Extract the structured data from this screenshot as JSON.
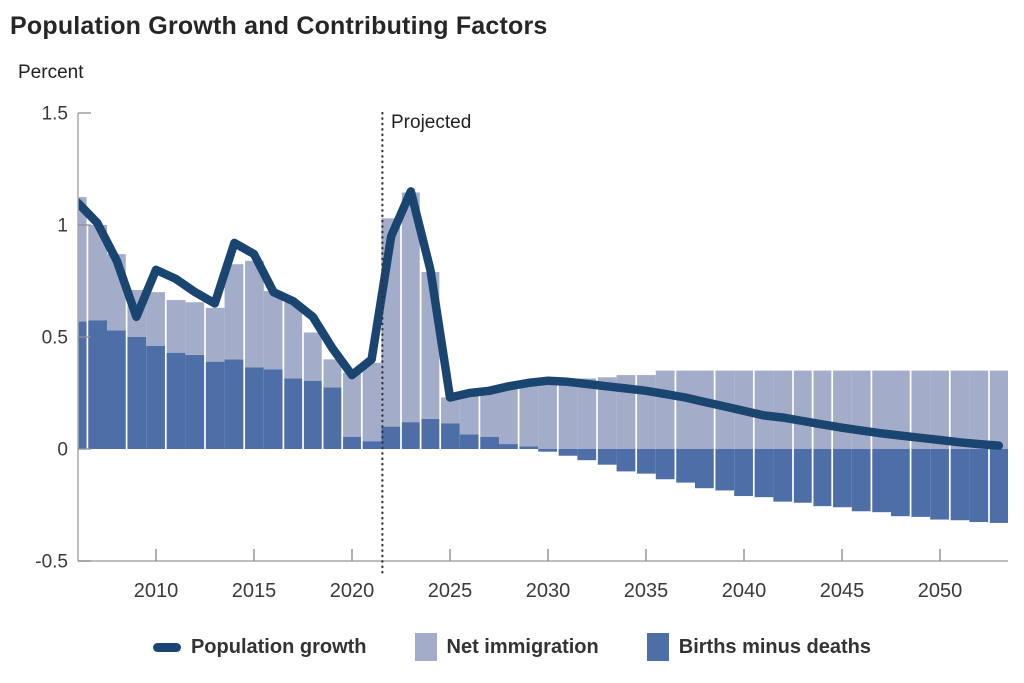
{
  "title": "Population Growth and Contributing Factors",
  "y_axis_label": "Percent",
  "projected_label": "Projected",
  "legend": [
    {
      "label": "Population growth",
      "type": "line",
      "color": "#1b4571"
    },
    {
      "label": "Net immigration",
      "type": "box",
      "color": "#a3adc9"
    },
    {
      "label": "Births minus deaths",
      "type": "box",
      "color": "#4d6ea6"
    }
  ],
  "colors": {
    "line": "#1b4571",
    "net_immigration": "#a3adc9",
    "births_minus_deaths": "#4d6ea6",
    "axis": "#a8a8a8",
    "tick": "#8f8f8f",
    "text": "#3a3a3a",
    "title": "#262626",
    "projection_divider": "#333333",
    "background": "#ffffff"
  },
  "chart_data": {
    "type": "bar",
    "subtype": "stacked-bars-with-line-overlay",
    "title": "Population Growth and Contributing Factors",
    "xlabel": "",
    "ylabel": "Percent",
    "ylim": [
      -0.5,
      1.5
    ],
    "y_ticks": [
      1.5,
      1,
      0.5,
      0,
      -0.5
    ],
    "y_tick_labels": [
      "1.5",
      "1",
      "0.5",
      "0",
      "-0.5"
    ],
    "x_ticks": [
      2010,
      2015,
      2020,
      2025,
      2030,
      2035,
      2040,
      2045,
      2050
    ],
    "grid": false,
    "legend_position": "bottom",
    "projection_start_year": 2022,
    "projection_label": "Projected",
    "x": [
      2006,
      2007,
      2008,
      2009,
      2010,
      2011,
      2012,
      2013,
      2014,
      2015,
      2016,
      2017,
      2018,
      2019,
      2020,
      2021,
      2022,
      2023,
      2024,
      2025,
      2026,
      2027,
      2028,
      2029,
      2030,
      2031,
      2032,
      2033,
      2034,
      2035,
      2036,
      2037,
      2038,
      2039,
      2040,
      2041,
      2042,
      2043,
      2044,
      2045,
      2046,
      2047,
      2048,
      2049,
      2050,
      2051,
      2052,
      2053
    ],
    "series": [
      {
        "name": "Population growth",
        "type": "line",
        "color": "#1b4571",
        "values": [
          1.1,
          1.01,
          0.84,
          0.59,
          0.8,
          0.76,
          0.7,
          0.65,
          0.92,
          0.87,
          0.7,
          0.66,
          0.59,
          0.45,
          0.33,
          0.4,
          0.95,
          1.15,
          0.8,
          0.23,
          0.25,
          0.26,
          0.28,
          0.295,
          0.305,
          0.3,
          0.29,
          0.28,
          0.27,
          0.26,
          0.245,
          0.23,
          0.21,
          0.19,
          0.17,
          0.15,
          0.14,
          0.125,
          0.11,
          0.095,
          0.082,
          0.07,
          0.06,
          0.05,
          0.04,
          0.03,
          0.022,
          0.015
        ]
      },
      {
        "name": "Net immigration",
        "type": "bar",
        "stack_position": "top",
        "color": "#a3adc9",
        "values": [
          0.555,
          0.425,
          0.34,
          0.21,
          0.24,
          0.235,
          0.235,
          0.24,
          0.425,
          0.475,
          0.35,
          0.34,
          0.215,
          0.125,
          0.285,
          0.35,
          0.93,
          1.025,
          0.655,
          0.115,
          0.185,
          0.205,
          0.26,
          0.28,
          0.315,
          0.315,
          0.315,
          0.32,
          0.33,
          0.33,
          0.35,
          0.35,
          0.35,
          0.35,
          0.35,
          0.35,
          0.35,
          0.35,
          0.35,
          0.35,
          0.35,
          0.35,
          0.35,
          0.35,
          0.35,
          0.35,
          0.35,
          0.35
        ]
      },
      {
        "name": "Births minus deaths",
        "type": "bar",
        "stack_position": "base",
        "color": "#4d6ea6",
        "values": [
          0.57,
          0.575,
          0.53,
          0.5,
          0.46,
          0.43,
          0.42,
          0.39,
          0.4,
          0.365,
          0.355,
          0.315,
          0.305,
          0.275,
          0.055,
          0.035,
          0.1,
          0.12,
          0.135,
          0.115,
          0.065,
          0.055,
          0.022,
          0.012,
          -0.012,
          -0.03,
          -0.05,
          -0.07,
          -0.1,
          -0.11,
          -0.135,
          -0.15,
          -0.175,
          -0.185,
          -0.21,
          -0.215,
          -0.235,
          -0.24,
          -0.255,
          -0.26,
          -0.278,
          -0.282,
          -0.3,
          -0.303,
          -0.315,
          -0.318,
          -0.326,
          -0.33
        ]
      }
    ],
    "stacking_note": "Net immigration is stacked on top of births-minus-deaths when births-minus-deaths is positive; when negative, immigration bar rises from zero and births-minus-deaths bar extends below zero. Line = total population growth."
  }
}
